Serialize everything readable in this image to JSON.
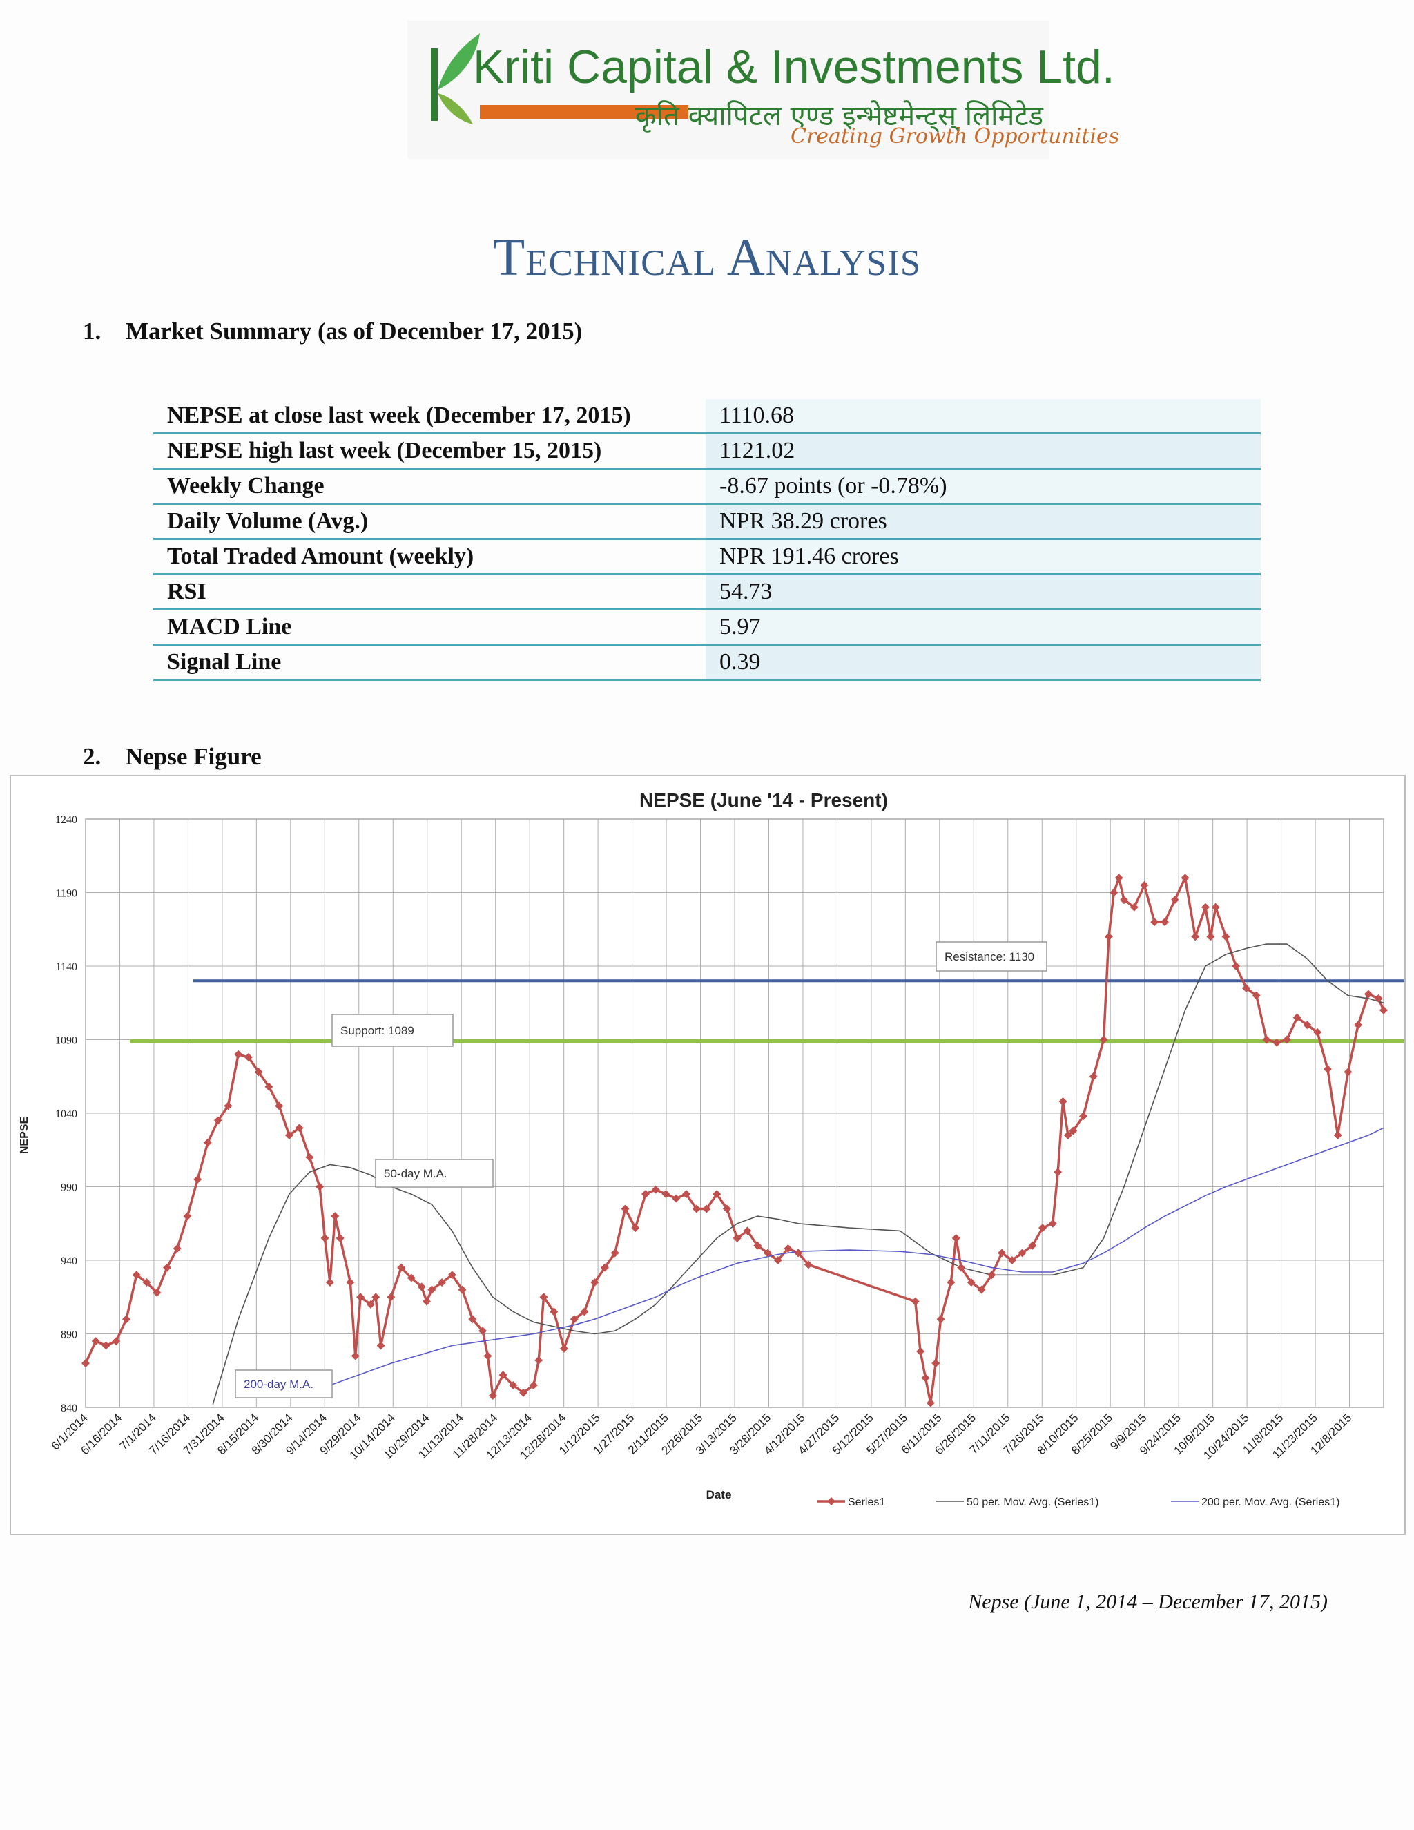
{
  "logo": {
    "brand_text": "Kriti Capital & Investments Ltd.",
    "devanagari_text": "कृति क्यापिटल एण्ड इन्भेष्टमेन्ट्स् लिमिटेड",
    "tagline": "Creating Growth Opportunities"
  },
  "title": "Technical Analysis",
  "sections": [
    {
      "number": "1.",
      "heading": "Market Summary (as of December 17, 2015)"
    },
    {
      "number": "2.",
      "heading": "Nepse Figure"
    }
  ],
  "summary_rows": [
    {
      "label": "NEPSE at close last week (December 17, 2015)",
      "value": "1110.68"
    },
    {
      "label": "NEPSE high last week (December 15, 2015)",
      "value": "1121.02"
    },
    {
      "label": "Weekly Change",
      "value": "-8.67 points (or -0.78%)"
    },
    {
      "label": "Daily Volume (Avg.)",
      "value": "NPR 38.29 crores"
    },
    {
      "label": "Total Traded Amount (weekly)",
      "value": "NPR 191.46 crores"
    },
    {
      "label": "RSI",
      "value": "54.73"
    },
    {
      "label": "MACD Line",
      "value": "5.97"
    },
    {
      "label": "Signal Line",
      "value": "0.39"
    }
  ],
  "chart_data": {
    "type": "line",
    "title": "NEPSE (June '14 - Present)",
    "xlabel": "Date",
    "ylabel": "NEPSE",
    "ylim": [
      840,
      1240
    ],
    "yticks": [
      840,
      890,
      940,
      990,
      1040,
      1090,
      1140,
      1190,
      1240
    ],
    "xticks": [
      "6/1/2014",
      "6/16/2014",
      "7/1/2014",
      "7/16/2014",
      "7/31/2014",
      "8/15/2014",
      "8/30/2014",
      "9/14/2014",
      "9/29/2014",
      "10/14/2014",
      "10/29/2014",
      "11/13/2014",
      "11/28/2014",
      "12/13/2014",
      "12/28/2014",
      "1/12/2015",
      "1/27/2015",
      "2/11/2015",
      "2/26/2015",
      "3/13/2015",
      "3/28/2015",
      "4/12/2015",
      "4/27/2015",
      "5/12/2015",
      "5/27/2015",
      "6/11/2015",
      "6/26/2015",
      "7/11/2015",
      "7/26/2015",
      "8/10/2015",
      "8/25/2015",
      "9/9/2015",
      "9/24/2015",
      "10/9/2015",
      "10/24/2015",
      "11/8/2015",
      "11/23/2015",
      "12/8/2015"
    ],
    "grid": true,
    "legend_position": "bottom-right",
    "series": [
      {
        "name": "Series1",
        "color": "#c0504d",
        "marker": "diamond",
        "points": [
          [
            0,
            870
          ],
          [
            2,
            885
          ],
          [
            4,
            882
          ],
          [
            6,
            885
          ],
          [
            8,
            900
          ],
          [
            10,
            930
          ],
          [
            12,
            925
          ],
          [
            14,
            918
          ],
          [
            16,
            935
          ],
          [
            18,
            948
          ],
          [
            20,
            970
          ],
          [
            22,
            995
          ],
          [
            24,
            1020
          ],
          [
            26,
            1035
          ],
          [
            28,
            1045
          ],
          [
            30,
            1080
          ],
          [
            32,
            1078
          ],
          [
            34,
            1068
          ],
          [
            36,
            1058
          ],
          [
            38,
            1045
          ],
          [
            40,
            1025
          ],
          [
            42,
            1030
          ],
          [
            44,
            1010
          ],
          [
            46,
            990
          ],
          [
            47,
            955
          ],
          [
            48,
            925
          ],
          [
            49,
            970
          ],
          [
            50,
            955
          ],
          [
            52,
            925
          ],
          [
            53,
            875
          ],
          [
            54,
            915
          ],
          [
            56,
            910
          ],
          [
            57,
            915
          ],
          [
            58,
            882
          ],
          [
            60,
            915
          ],
          [
            62,
            935
          ],
          [
            64,
            928
          ],
          [
            66,
            922
          ],
          [
            67,
            912
          ],
          [
            68,
            920
          ],
          [
            70,
            925
          ],
          [
            72,
            930
          ],
          [
            74,
            920
          ],
          [
            76,
            900
          ],
          [
            78,
            892
          ],
          [
            79,
            875
          ],
          [
            80,
            848
          ],
          [
            82,
            862
          ],
          [
            84,
            855
          ],
          [
            86,
            850
          ],
          [
            88,
            855
          ],
          [
            89,
            872
          ],
          [
            90,
            915
          ],
          [
            92,
            905
          ],
          [
            94,
            880
          ],
          [
            96,
            900
          ],
          [
            98,
            905
          ],
          [
            100,
            925
          ],
          [
            102,
            935
          ],
          [
            104,
            945
          ],
          [
            106,
            975
          ],
          [
            108,
            962
          ],
          [
            110,
            985
          ],
          [
            112,
            988
          ],
          [
            114,
            985
          ],
          [
            116,
            982
          ],
          [
            118,
            985
          ],
          [
            120,
            975
          ],
          [
            122,
            975
          ],
          [
            124,
            985
          ],
          [
            126,
            975
          ],
          [
            128,
            955
          ],
          [
            130,
            960
          ],
          [
            132,
            950
          ],
          [
            134,
            945
          ],
          [
            136,
            940
          ],
          [
            138,
            948
          ],
          [
            140,
            945
          ],
          [
            142,
            937
          ],
          [
            163,
            912
          ],
          [
            164,
            878
          ],
          [
            165,
            860
          ],
          [
            166,
            843
          ],
          [
            167,
            870
          ],
          [
            168,
            900
          ],
          [
            170,
            925
          ],
          [
            171,
            955
          ],
          [
            172,
            935
          ],
          [
            174,
            925
          ],
          [
            176,
            920
          ],
          [
            178,
            930
          ],
          [
            180,
            945
          ],
          [
            182,
            940
          ],
          [
            184,
            945
          ],
          [
            186,
            950
          ],
          [
            188,
            962
          ],
          [
            190,
            965
          ],
          [
            191,
            1000
          ],
          [
            192,
            1048
          ],
          [
            193,
            1025
          ],
          [
            194,
            1028
          ],
          [
            196,
            1038
          ],
          [
            198,
            1065
          ],
          [
            200,
            1090
          ],
          [
            201,
            1160
          ],
          [
            202,
            1190
          ],
          [
            203,
            1200
          ],
          [
            204,
            1185
          ],
          [
            206,
            1180
          ],
          [
            208,
            1195
          ],
          [
            210,
            1170
          ],
          [
            212,
            1170
          ],
          [
            214,
            1185
          ],
          [
            216,
            1200
          ],
          [
            218,
            1160
          ],
          [
            220,
            1180
          ],
          [
            221,
            1160
          ],
          [
            222,
            1180
          ],
          [
            224,
            1160
          ],
          [
            226,
            1140
          ],
          [
            228,
            1125
          ],
          [
            230,
            1120
          ],
          [
            232,
            1090
          ],
          [
            234,
            1088
          ],
          [
            236,
            1090
          ],
          [
            238,
            1105
          ],
          [
            240,
            1100
          ],
          [
            242,
            1095
          ],
          [
            244,
            1070
          ],
          [
            246,
            1025
          ],
          [
            248,
            1068
          ],
          [
            250,
            1100
          ],
          [
            252,
            1121
          ],
          [
            254,
            1118
          ],
          [
            255,
            1110
          ]
        ]
      },
      {
        "name": "50 per. Mov. Avg. (Series1)",
        "color": "#555555",
        "points": [
          [
            25,
            842
          ],
          [
            30,
            900
          ],
          [
            36,
            955
          ],
          [
            40,
            985
          ],
          [
            44,
            1000
          ],
          [
            48,
            1005
          ],
          [
            52,
            1003
          ],
          [
            56,
            998
          ],
          [
            60,
            990
          ],
          [
            64,
            985
          ],
          [
            68,
            978
          ],
          [
            72,
            960
          ],
          [
            76,
            935
          ],
          [
            80,
            915
          ],
          [
            84,
            905
          ],
          [
            88,
            898
          ],
          [
            92,
            895
          ],
          [
            96,
            892
          ],
          [
            100,
            890
          ],
          [
            104,
            892
          ],
          [
            108,
            900
          ],
          [
            112,
            910
          ],
          [
            116,
            925
          ],
          [
            120,
            940
          ],
          [
            124,
            955
          ],
          [
            128,
            965
          ],
          [
            132,
            970
          ],
          [
            136,
            968
          ],
          [
            140,
            965
          ],
          [
            150,
            962
          ],
          [
            160,
            960
          ],
          [
            166,
            945
          ],
          [
            172,
            935
          ],
          [
            178,
            930
          ],
          [
            184,
            930
          ],
          [
            190,
            930
          ],
          [
            196,
            935
          ],
          [
            200,
            955
          ],
          [
            204,
            990
          ],
          [
            208,
            1030
          ],
          [
            212,
            1070
          ],
          [
            216,
            1110
          ],
          [
            220,
            1140
          ],
          [
            224,
            1148
          ],
          [
            228,
            1152
          ],
          [
            232,
            1155
          ],
          [
            236,
            1155
          ],
          [
            240,
            1145
          ],
          [
            244,
            1130
          ],
          [
            248,
            1120
          ],
          [
            252,
            1118
          ],
          [
            255,
            1115
          ]
        ]
      },
      {
        "name": "200 per. Mov. Avg. (Series1)",
        "color": "#5a59c8",
        "points": [
          [
            48,
            855
          ],
          [
            52,
            860
          ],
          [
            56,
            865
          ],
          [
            60,
            870
          ],
          [
            64,
            874
          ],
          [
            68,
            878
          ],
          [
            72,
            882
          ],
          [
            76,
            884
          ],
          [
            80,
            886
          ],
          [
            84,
            888
          ],
          [
            88,
            890
          ],
          [
            92,
            893
          ],
          [
            96,
            896
          ],
          [
            100,
            900
          ],
          [
            104,
            905
          ],
          [
            108,
            910
          ],
          [
            112,
            915
          ],
          [
            116,
            922
          ],
          [
            120,
            928
          ],
          [
            124,
            933
          ],
          [
            128,
            938
          ],
          [
            132,
            941
          ],
          [
            136,
            944
          ],
          [
            140,
            946
          ],
          [
            150,
            947
          ],
          [
            160,
            946
          ],
          [
            166,
            944
          ],
          [
            172,
            940
          ],
          [
            178,
            935
          ],
          [
            184,
            932
          ],
          [
            190,
            932
          ],
          [
            196,
            938
          ],
          [
            200,
            945
          ],
          [
            204,
            953
          ],
          [
            208,
            962
          ],
          [
            212,
            970
          ],
          [
            216,
            977
          ],
          [
            220,
            984
          ],
          [
            224,
            990
          ],
          [
            228,
            995
          ],
          [
            232,
            1000
          ],
          [
            236,
            1005
          ],
          [
            240,
            1010
          ],
          [
            244,
            1015
          ],
          [
            248,
            1020
          ],
          [
            252,
            1025
          ],
          [
            255,
            1030
          ]
        ]
      }
    ],
    "annotations": [
      {
        "text": "Resistance: 1130",
        "value": 1130,
        "color": "#3f5f9e"
      },
      {
        "text": "Support: 1089",
        "value": 1089,
        "color": "#92c14b"
      },
      {
        "text": "50-day M.A."
      },
      {
        "text": "200-day M.A."
      }
    ]
  },
  "caption": "Nepse (June 1, 2014 – December 17, 2015)"
}
